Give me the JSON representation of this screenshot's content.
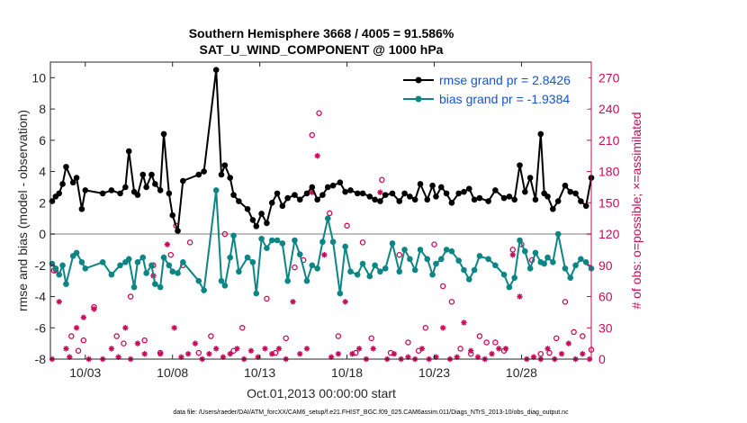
{
  "chart_data": {
    "type": "line",
    "title_line1": "Southern Hemisphere 3668 / 4005 = 91.586%",
    "title_line2": "SAT_U_WIND_COMPONENT @ 1000 hPa",
    "xlabel": "Oct.01,2013 00:00:00 start",
    "ylabel_left": "rmse and bias (model - observation)",
    "ylabel_right": "# of obs: o=possible; ×=assimilated",
    "footnote": "data file: /Users/raeder/DAI/ATM_forcXX/CAM6_setup/f.e21.FHIST_BGC.f09_025.CAM6assim.011/Diags_NTrS_2013-10/obs_diag_output.nc",
    "x_ticks": [
      {
        "value": 3,
        "label": "10/03"
      },
      {
        "value": 8,
        "label": "10/08"
      },
      {
        "value": 13,
        "label": "10/13"
      },
      {
        "value": 18,
        "label": "10/18"
      },
      {
        "value": 23,
        "label": "10/23"
      },
      {
        "value": 28,
        "label": "10/28"
      }
    ],
    "xlim": [
      1,
      32
    ],
    "ylim_left": [
      -8,
      11
    ],
    "y_ticks_left": [
      "-8",
      "-6",
      "-4",
      "-2",
      "0",
      "2",
      "4",
      "6",
      "8",
      "10"
    ],
    "ylim_right": [
      0,
      285
    ],
    "y_ticks_right": [
      "0",
      "30",
      "60",
      "90",
      "120",
      "150",
      "180",
      "210",
      "240",
      "270"
    ],
    "legend": [
      {
        "name": "rmse grand pr = 2.8426",
        "color": "#000000"
      },
      {
        "name": "bias grand pr = -1.9384",
        "color": "#0d8585"
      }
    ],
    "colors": {
      "rmse": "#000000",
      "bias": "#0d8585",
      "obs": "#cc0a5a",
      "zero": "#bdbdbd"
    },
    "rmse": {
      "x": [
        1.1,
        1.3,
        1.5,
        1.7,
        1.9,
        2.3,
        2.5,
        2.8,
        3.0,
        4.0,
        4.5,
        5.0,
        5.3,
        5.5,
        5.8,
        6.0,
        6.3,
        6.5,
        6.8,
        7.0,
        7.3,
        7.5,
        7.8,
        8.0,
        8.3,
        8.6,
        9.5,
        9.8,
        10.5,
        10.8,
        11.0,
        11.3,
        11.5,
        11.8,
        12.3,
        12.6,
        12.8,
        13.1,
        13.4,
        13.7,
        14.0,
        14.3,
        14.6,
        15.0,
        15.3,
        15.7,
        16.0,
        16.3,
        16.6,
        16.9,
        17.2,
        17.6,
        17.9,
        18.2,
        18.6,
        18.9,
        19.3,
        19.6,
        19.9,
        20.2,
        20.6,
        21.0,
        21.3,
        21.6,
        21.9,
        22.2,
        22.6,
        22.9,
        23.1,
        23.4,
        23.7,
        24.0,
        24.4,
        24.7,
        25.0,
        25.3,
        25.6,
        26.1,
        26.5,
        27.0,
        27.3,
        27.6,
        27.9,
        28.2,
        28.5,
        28.8,
        29.1,
        29.3,
        29.5,
        29.8,
        30.1,
        30.5,
        30.8,
        31.1,
        31.4,
        31.7,
        32.0
      ],
      "y": [
        2.1,
        2.4,
        2.6,
        3.2,
        4.3,
        3.3,
        3.6,
        1.6,
        2.8,
        2.6,
        2.8,
        2.6,
        3.0,
        5.3,
        2.7,
        2.5,
        3.8,
        3.0,
        3.8,
        3.2,
        2.8,
        6.4,
        2.6,
        1.2,
        0.2,
        3.4,
        3.8,
        4.0,
        10.5,
        3.8,
        4.4,
        3.6,
        2.5,
        2.1,
        1.6,
        0.9,
        0.5,
        1.3,
        0.7,
        2.0,
        2.6,
        1.8,
        2.3,
        2.5,
        2.2,
        2.6,
        3.0,
        2.2,
        2.5,
        3.0,
        3.1,
        3.3,
        2.7,
        2.8,
        2.6,
        2.6,
        2.4,
        2.2,
        2.1,
        2.5,
        2.6,
        2.1,
        2.6,
        2.4,
        2.2,
        3.2,
        2.2,
        3.1,
        2.4,
        3.0,
        2.6,
        2.0,
        2.6,
        2.7,
        2.9,
        2.2,
        2.3,
        2.1,
        2.8,
        2.3,
        2.4,
        2.2,
        4.4,
        2.7,
        3.6,
        2.2,
        6.4,
        2.6,
        2.4,
        1.6,
        2.1,
        3.1,
        2.7,
        2.6,
        2.1,
        1.8,
        3.6
      ]
    },
    "bias": {
      "x": [
        1.1,
        1.3,
        1.5,
        1.7,
        1.9,
        2.3,
        2.5,
        2.8,
        3.0,
        4.0,
        4.5,
        5.0,
        5.3,
        5.5,
        5.8,
        6.0,
        6.3,
        6.5,
        6.8,
        7.0,
        7.3,
        7.5,
        7.8,
        8.0,
        8.3,
        8.6,
        9.5,
        9.8,
        10.5,
        10.8,
        11.0,
        11.3,
        11.5,
        11.8,
        12.3,
        12.6,
        12.8,
        13.1,
        13.4,
        13.7,
        14.0,
        14.3,
        14.6,
        15.0,
        15.3,
        15.7,
        16.0,
        16.3,
        16.6,
        16.9,
        17.2,
        17.6,
        17.9,
        18.2,
        18.6,
        18.9,
        19.3,
        19.6,
        19.9,
        20.2,
        20.6,
        21.0,
        21.3,
        21.6,
        21.9,
        22.2,
        22.6,
        22.9,
        23.1,
        23.4,
        23.7,
        24.0,
        24.4,
        24.7,
        25.0,
        25.3,
        25.6,
        26.1,
        26.5,
        27.0,
        27.3,
        27.6,
        27.9,
        28.2,
        28.5,
        28.8,
        29.1,
        29.3,
        29.5,
        29.8,
        30.1,
        30.5,
        30.8,
        31.1,
        31.4,
        31.7,
        32.0
      ],
      "y": [
        -1.9,
        -2.2,
        -2.6,
        -2.0,
        -3.2,
        -1.4,
        -1.2,
        -1.8,
        -2.2,
        -1.8,
        -2.6,
        -2.0,
        -1.8,
        -1.6,
        -3.4,
        -1.8,
        -1.5,
        -2.5,
        -2.0,
        -3.2,
        -3.4,
        -1.5,
        -2.0,
        -2.4,
        -2.5,
        -1.8,
        -3.0,
        -3.6,
        2.8,
        -3.0,
        -3.3,
        -1.5,
        -0.1,
        -2.4,
        -1.5,
        -1.8,
        -3.8,
        -0.3,
        -0.9,
        -0.4,
        -0.4,
        -0.6,
        -3.0,
        -0.4,
        -1.3,
        -3.0,
        -2.0,
        -2.2,
        -0.5,
        1.0,
        -0.5,
        -3.8,
        -0.8,
        -2.4,
        -2.6,
        -1.9,
        -2.7,
        -2.0,
        -2.4,
        -2.2,
        -0.6,
        -2.4,
        -1.0,
        -1.6,
        -2.3,
        -1.0,
        -1.6,
        -2.6,
        -1.9,
        -1.6,
        -1.0,
        -1.1,
        -1.7,
        -2.3,
        -2.9,
        -2.3,
        -1.4,
        -1.6,
        -2.0,
        -2.6,
        -3.4,
        -2.8,
        -0.4,
        -1.1,
        -2.2,
        -1.2,
        -1.8,
        -1.9,
        -1.5,
        -1.8,
        0.0,
        -2.2,
        -2.8,
        -2.0,
        -1.6,
        -1.8,
        -2.2
      ]
    },
    "obs_possible": {
      "x": [
        1.2,
        2.2,
        2.6,
        2.9,
        3.5,
        4.8,
        5.2,
        5.6,
        6.4,
        6.9,
        7.3,
        7.9,
        8.2,
        8.6,
        9.0,
        9.5,
        10.2,
        11.0,
        11.5,
        12.0,
        13.4,
        13.9,
        14.5,
        15.0,
        15.5,
        16.0,
        16.4,
        17.0,
        17.5,
        18.0,
        18.5,
        18.9,
        19.4,
        20.0,
        20.5,
        21.0,
        21.5,
        22.1,
        22.5,
        23.0,
        23.5,
        24.0,
        24.5,
        25.1,
        25.6,
        26.0,
        26.5,
        27.0,
        27.5,
        28.0,
        28.6,
        29.1,
        29.6,
        30.0,
        30.5,
        31.0,
        31.5,
        32.0
      ],
      "y": [
        85,
        22,
        8,
        18,
        50,
        22,
        15,
        60,
        18,
        90,
        6,
        100,
        128,
        90,
        112,
        6,
        22,
        120,
        8,
        30,
        58,
        6,
        20,
        88,
        95,
        215,
        236,
        140,
        22,
        128,
        6,
        112,
        20,
        172,
        6,
        100,
        16,
        8,
        30,
        110,
        70,
        55,
        10,
        5,
        22,
        16,
        16,
        8,
        105,
        110,
        95,
        5,
        6,
        20,
        55,
        26,
        22,
        9
      ]
    },
    "obs_assimilated": {
      "x": [
        1.1,
        1.3,
        1.5,
        1.9,
        2.1,
        2.5,
        2.9,
        3.2,
        3.5,
        4.0,
        4.5,
        4.9,
        5.3,
        5.6,
        6.0,
        6.4,
        6.9,
        7.3,
        7.7,
        8.1,
        8.5,
        8.9,
        9.3,
        9.7,
        10.1,
        10.5,
        10.9,
        11.3,
        11.7,
        12.1,
        12.5,
        12.9,
        13.3,
        13.7,
        14.1,
        14.5,
        14.9,
        15.3,
        15.7,
        16.0,
        16.3,
        16.7,
        17.1,
        17.5,
        17.9,
        18.3,
        18.7,
        19.1,
        19.5,
        19.9,
        20.3,
        20.7,
        21.1,
        21.5,
        21.9,
        22.3,
        22.7,
        23.1,
        23.5,
        23.9,
        24.3,
        24.7,
        25.1,
        25.5,
        25.9,
        26.3,
        26.7,
        27.1,
        27.5,
        27.9,
        28.3,
        28.7,
        29.1,
        29.5,
        29.9,
        30.3,
        30.7,
        31.1,
        31.5,
        31.9
      ],
      "y": [
        0,
        85,
        55,
        10,
        2,
        30,
        40,
        0,
        48,
        0,
        10,
        2,
        30,
        0,
        15,
        5,
        80,
        5,
        110,
        30,
        2,
        5,
        15,
        0,
        5,
        10,
        2,
        5,
        10,
        0,
        8,
        2,
        10,
        5,
        10,
        0,
        55,
        5,
        10,
        160,
        195,
        100,
        2,
        5,
        55,
        5,
        10,
        0,
        10,
        160,
        0,
        5,
        0,
        2,
        0,
        10,
        0,
        2,
        30,
        0,
        2,
        35,
        8,
        2,
        0,
        5,
        10,
        10,
        100,
        60,
        0,
        2,
        0,
        10,
        0,
        5,
        15,
        0,
        5,
        0
      ]
    }
  }
}
